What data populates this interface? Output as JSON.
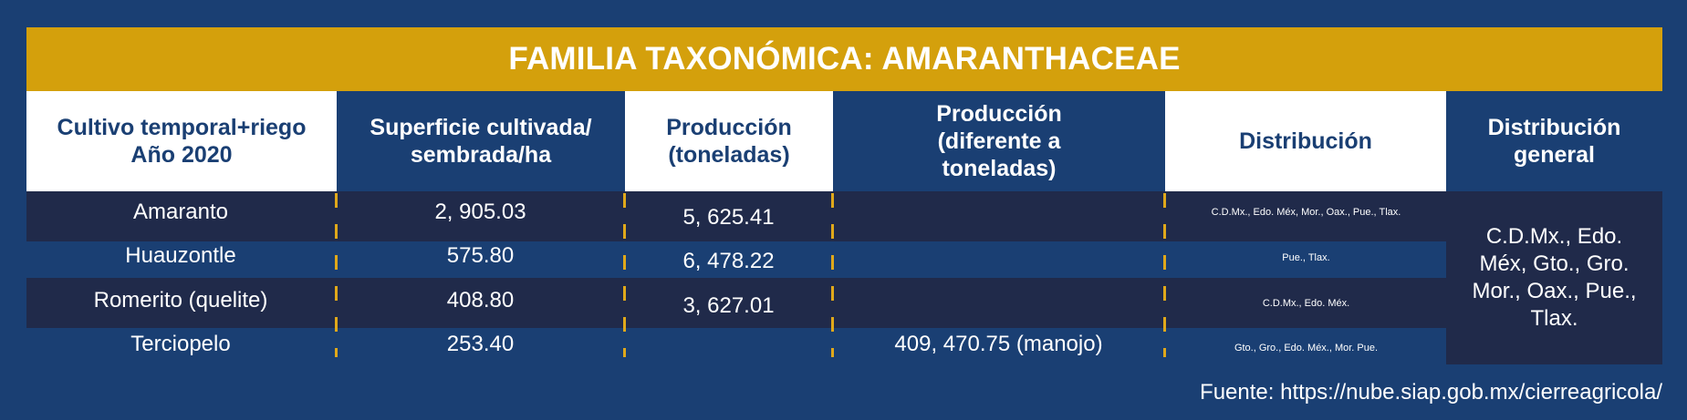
{
  "title": "FAMILIA TAXONÓMICA: AMARANTHACEAE",
  "headers": [
    "Cultivo temporal+riego Año 2020",
    "Superficie cultivada/ sembrada/ha",
    "Producción (toneladas)",
    "Producción (diferente a toneladas)",
    "Distribución",
    "Distribución general"
  ],
  "rows": [
    {
      "cultivo": "Amaranto",
      "superficie": "2, 905.03",
      "produccion": "5, 625.41",
      "produccion_otra": "",
      "distribucion": "C.D.Mx., Edo. Méx, Mor., Oax., Pue., Tlax."
    },
    {
      "cultivo": "Huauzontle",
      "superficie": "575.80",
      "produccion": "6, 478.22",
      "produccion_otra": "",
      "distribucion": "Pue., Tlax."
    },
    {
      "cultivo": "Romerito (quelite)",
      "superficie": "408.80",
      "produccion": "3, 627.01",
      "produccion_otra": "",
      "distribucion": "C.D.Mx., Edo. Méx."
    },
    {
      "cultivo": "Terciopelo",
      "superficie": "253.40",
      "produccion": "",
      "produccion_otra": "409, 470.75 (manojo)",
      "distribucion": "Gto., Gro., Edo. Méx., Mor. Pue."
    }
  ],
  "distribucion_general": "C.D.Mx., Edo. Méx, Gto., Gro. Mor., Oax., Pue., Tlax.",
  "source": "Fuente: https://nube.siap.gob.mx/cierreagricola/",
  "colors": {
    "background": "#1a3f73",
    "title_bar": "#d4a00c",
    "dark_row": "#202a4a",
    "separator": "#e0a81a"
  }
}
